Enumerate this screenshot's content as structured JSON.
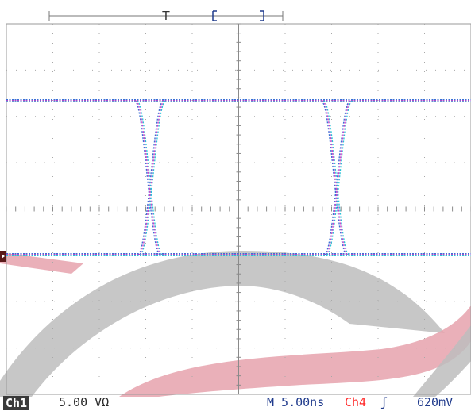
{
  "top_marker": {
    "trigger_label": "T"
  },
  "status": {
    "channel": "Ch1",
    "vertical_scale": "5.00 VΩ",
    "timebase": "M 5.00ns",
    "trigger_channel": "Ch4",
    "trigger_edge": "ʃ",
    "trigger_level": "620mV"
  },
  "colors": {
    "trace_blue": "#3b6fd6",
    "trace_magenta": "#d23cc8",
    "trace_cyan": "#25c3d8",
    "watermark_gray": "#bdbdbd",
    "watermark_red": "#e6a2ad",
    "grid": "#9a9a9a",
    "trigger_red": "#ff2a2a"
  }
}
